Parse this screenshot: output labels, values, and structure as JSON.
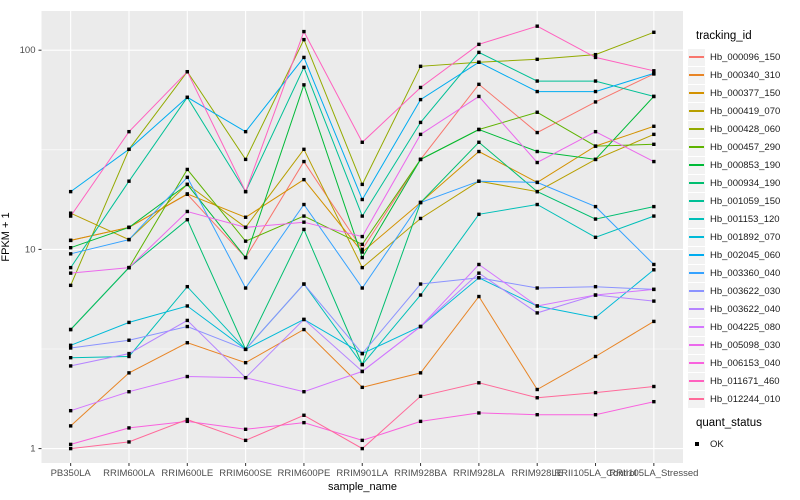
{
  "chart_data": {
    "type": "line",
    "title": "",
    "xlabel": "sample_name",
    "ylabel": "FPKM + 1",
    "y_scale": "log10",
    "y_ticks": [
      1,
      10,
      100
    ],
    "ylim": [
      0.95,
      140
    ],
    "grid": "on",
    "panel_bg": "#EBEBEB",
    "grid_color": "#FFFFFF",
    "tick_label_color": "#4D4D4D",
    "point_marker": {
      "shape": "square",
      "color": "#000000",
      "size": 3.4
    },
    "legend_position": "right",
    "categories": [
      "PB350LA",
      "RRIM600LA",
      "RRIM600LE",
      "RRIM600SE",
      "RRIM600PE",
      "RRIM901LA",
      "RRIM928BA",
      "RRIM928LA",
      "RRIM928LE",
      "RRII105LA_Control",
      "RRII105LA_Stressed"
    ],
    "series": [
      {
        "name": "Hb_000096_150",
        "color": "#F8766D",
        "values": [
          11.1,
          12.9,
          18.9,
          9.1,
          27.6,
          10.0,
          28.3,
          67.4,
          38.6,
          55.0,
          76.0
        ]
      },
      {
        "name": "Hb_000340_310",
        "color": "#E88526",
        "values": [
          1.3,
          2.4,
          3.4,
          2.7,
          3.96,
          2.03,
          2.4,
          5.8,
          1.98,
          2.9,
          4.35
        ]
      },
      {
        "name": "Hb_000377_150",
        "color": "#D39200",
        "values": [
          11.1,
          12.9,
          19.0,
          14.5,
          22.4,
          9.7,
          17.2,
          31.0,
          21.7,
          33.0,
          41.5
        ]
      },
      {
        "name": "Hb_000419_070",
        "color": "#B79F00",
        "values": [
          15.2,
          11.2,
          21.2,
          12.9,
          31.8,
          8.1,
          14.3,
          22.0,
          19.5,
          28.3,
          37.8
        ]
      },
      {
        "name": "Hb_000428_060",
        "color": "#93AA00",
        "values": [
          6.6,
          31.8,
          78.0,
          28.3,
          113.0,
          21.2,
          83.0,
          87.0,
          90.0,
          95.0,
          123.0
        ]
      },
      {
        "name": "Hb_000457_290",
        "color": "#5EB300",
        "values": [
          3.96,
          8.1,
          25.2,
          11.0,
          14.7,
          10.6,
          28.3,
          40.0,
          48.8,
          33.0,
          33.7
        ]
      },
      {
        "name": "Hb_000853_190",
        "color": "#00BA38",
        "values": [
          10.2,
          12.9,
          21.2,
          9.1,
          67.0,
          9.1,
          28.3,
          40.0,
          31.0,
          28.3,
          58.6
        ]
      },
      {
        "name": "Hb_000934_190",
        "color": "#00BE70",
        "values": [
          3.96,
          8.1,
          14.1,
          3.15,
          12.6,
          2.64,
          17.2,
          34.5,
          19.5,
          14.2,
          16.4
        ]
      },
      {
        "name": "Hb_001059_150",
        "color": "#00C096",
        "values": [
          8.1,
          22.0,
          58.0,
          19.5,
          82.0,
          14.7,
          43.4,
          97.5,
          70.0,
          70.0,
          58.6
        ]
      },
      {
        "name": "Hb_001153_120",
        "color": "#00BFB8",
        "values": [
          2.86,
          2.9,
          6.5,
          3.15,
          6.7,
          2.64,
          5.9,
          15.0,
          16.8,
          11.5,
          14.7
        ]
      },
      {
        "name": "Hb_001892_070",
        "color": "#00BAD8",
        "values": [
          3.3,
          4.3,
          5.2,
          3.15,
          4.45,
          3.0,
          4.1,
          7.2,
          5.2,
          4.55,
          7.9
        ]
      },
      {
        "name": "Hb_002045_060",
        "color": "#00ACF0",
        "values": [
          19.5,
          31.8,
          58.0,
          39.0,
          92.0,
          17.8,
          56.5,
          87.0,
          62.0,
          62.0,
          76.5
        ]
      },
      {
        "name": "Hb_003360_040",
        "color": "#35A2FF",
        "values": [
          9.5,
          11.2,
          23.0,
          6.4,
          16.8,
          6.4,
          17.2,
          22.0,
          21.7,
          16.4,
          8.4
        ]
      },
      {
        "name": "Hb_003622_030",
        "color": "#8B93FF",
        "values": [
          3.2,
          3.5,
          4.1,
          3.15,
          6.7,
          3.0,
          6.7,
          7.2,
          6.4,
          6.5,
          6.3
        ]
      },
      {
        "name": "Hb_003622_040",
        "color": "#B584FF",
        "values": [
          2.6,
          3.0,
          4.4,
          2.27,
          4.45,
          2.44,
          4.1,
          7.6,
          4.8,
          5.9,
          5.5
        ]
      },
      {
        "name": "Hb_004225_080",
        "color": "#D476FF",
        "values": [
          1.55,
          1.93,
          2.3,
          2.27,
          1.93,
          2.44,
          4.1,
          8.4,
          5.2,
          5.9,
          6.3
        ]
      },
      {
        "name": "Hb_005098_030",
        "color": "#EB69EC",
        "values": [
          7.6,
          8.1,
          15.5,
          12.9,
          13.7,
          11.6,
          37.8,
          58.6,
          27.3,
          39.0,
          27.6
        ]
      },
      {
        "name": "Hb_006153_040",
        "color": "#F962DE",
        "values": [
          1.05,
          1.27,
          1.37,
          1.25,
          1.35,
          1.1,
          1.37,
          1.51,
          1.48,
          1.48,
          1.72
        ]
      },
      {
        "name": "Hb_011671_460",
        "color": "#FF61BF",
        "values": [
          14.7,
          39.0,
          78.0,
          19.5,
          124.0,
          34.5,
          65.0,
          107.0,
          132.0,
          92.0,
          78.8
        ]
      },
      {
        "name": "Hb_012244_010",
        "color": "#FF6A9A",
        "values": [
          1.0,
          1.08,
          1.4,
          1.1,
          1.47,
          1.0,
          1.83,
          2.14,
          1.8,
          1.91,
          2.05
        ]
      }
    ]
  },
  "legend": {
    "tracking_title": "tracking_id",
    "quant_title": "quant_status",
    "quant_items": [
      {
        "label": "OK"
      }
    ]
  }
}
